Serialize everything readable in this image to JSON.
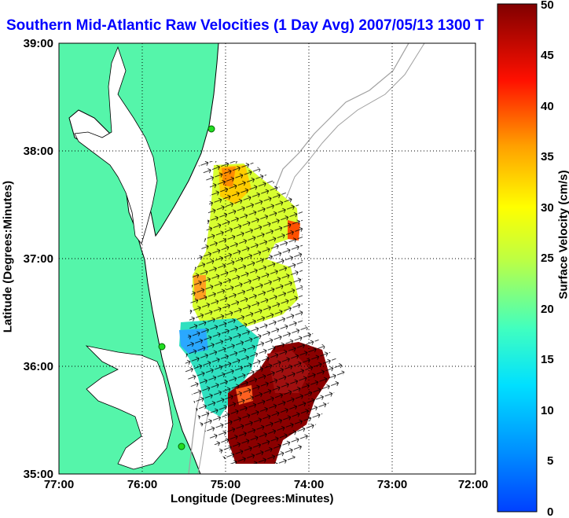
{
  "title": "Southern Mid-Atlantic Raw Velocities (1 Day Avg) 2007/05/13 1300",
  "title_suffix": "T",
  "axes": {
    "xlabel": "Longitude (Degrees:Minutes)",
    "ylabel": "Latitude (Degrees:Minutes)",
    "xticks": [
      "77:00",
      "76:00",
      "75:00",
      "74:00",
      "73:00",
      "72:00"
    ],
    "yticks": [
      "39:00",
      "38:00",
      "37:00",
      "36:00",
      "35:00"
    ],
    "grid": "dotted"
  },
  "colorbar": {
    "label": "Surface Velocity (cm/s)",
    "ticks": [
      "50",
      "45",
      "40",
      "35",
      "30",
      "25",
      "20",
      "15",
      "10",
      "5",
      "0"
    ],
    "min": 0,
    "max": 50,
    "colormap": "jet"
  },
  "colors": {
    "land": "#55f5aa",
    "coastline": "#000000",
    "bathymetry": "#a0a0a0",
    "station_marker": "#22dd22",
    "title": "#0000ff"
  },
  "chart_data": {
    "type": "heatmap",
    "title": "Southern Mid-Atlantic Raw Velocities (1 Day Avg) 2007/05/13 1300",
    "xlabel": "Longitude (Degrees:Minutes)",
    "ylabel": "Latitude (Degrees:Minutes)",
    "xlim": [
      -77.0,
      -72.0
    ],
    "ylim": [
      35.0,
      39.0
    ],
    "colorbar_label": "Surface Velocity (cm/s)",
    "clim": [
      0,
      50
    ],
    "stations": [
      {
        "lon": -74.85,
        "lat": 38.2
      },
      {
        "lon": -75.7,
        "lat": 36.18
      },
      {
        "lon": -75.5,
        "lat": 35.25
      }
    ],
    "regions": [
      {
        "area": "north of 37:00 (36.8 to 37.8 N, 74.2 to 75.1 W)",
        "velocity_cms": 25
      },
      {
        "area": "north edge near 37:50 N",
        "velocity_cms": 38
      },
      {
        "area": "offshore Virginia near 37:00 N",
        "velocity_cms": 28
      },
      {
        "area": "nearshore near 36:15 N",
        "velocity_cms": 10
      },
      {
        "area": "offshore NC 35.2 to 36.2 N, 74.0 to 75.0 W",
        "velocity_cms": 50
      }
    ]
  }
}
